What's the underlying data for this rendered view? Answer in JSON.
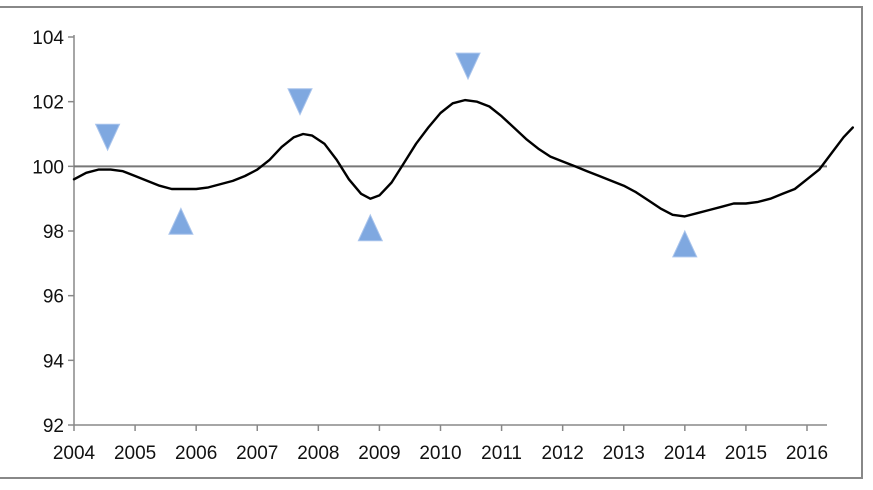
{
  "chart_data": {
    "type": "line",
    "x_tick_labels": [
      "2004",
      "2005",
      "2006",
      "2007",
      "2008",
      "2009",
      "2010",
      "2011",
      "2012",
      "2013",
      "2014",
      "2015",
      "2016"
    ],
    "y_ticks": [
      92,
      94,
      96,
      98,
      100,
      102,
      104
    ],
    "xlim": [
      2004,
      2016.75
    ],
    "ylim": [
      92,
      104
    ],
    "reference_line": 100,
    "grid": false,
    "series": [
      {
        "color": "#000000",
        "points": [
          [
            2004.0,
            99.6
          ],
          [
            2004.2,
            99.8
          ],
          [
            2004.4,
            99.9
          ],
          [
            2004.6,
            99.9
          ],
          [
            2004.8,
            99.85
          ],
          [
            2005.0,
            99.7
          ],
          [
            2005.2,
            99.55
          ],
          [
            2005.4,
            99.4
          ],
          [
            2005.6,
            99.3
          ],
          [
            2005.8,
            99.3
          ],
          [
            2006.0,
            99.3
          ],
          [
            2006.2,
            99.35
          ],
          [
            2006.4,
            99.45
          ],
          [
            2006.6,
            99.55
          ],
          [
            2006.8,
            99.7
          ],
          [
            2007.0,
            99.9
          ],
          [
            2007.2,
            100.2
          ],
          [
            2007.4,
            100.6
          ],
          [
            2007.6,
            100.9
          ],
          [
            2007.75,
            101.0
          ],
          [
            2007.9,
            100.95
          ],
          [
            2008.1,
            100.7
          ],
          [
            2008.3,
            100.2
          ],
          [
            2008.5,
            99.6
          ],
          [
            2008.7,
            99.15
          ],
          [
            2008.85,
            99.0
          ],
          [
            2009.0,
            99.1
          ],
          [
            2009.2,
            99.5
          ],
          [
            2009.4,
            100.1
          ],
          [
            2009.6,
            100.7
          ],
          [
            2009.8,
            101.2
          ],
          [
            2010.0,
            101.65
          ],
          [
            2010.2,
            101.95
          ],
          [
            2010.4,
            102.05
          ],
          [
            2010.6,
            102.0
          ],
          [
            2010.8,
            101.85
          ],
          [
            2011.0,
            101.55
          ],
          [
            2011.2,
            101.2
          ],
          [
            2011.4,
            100.85
          ],
          [
            2011.6,
            100.55
          ],
          [
            2011.8,
            100.3
          ],
          [
            2012.0,
            100.15
          ],
          [
            2012.2,
            100.0
          ],
          [
            2012.4,
            99.85
          ],
          [
            2012.6,
            99.7
          ],
          [
            2012.8,
            99.55
          ],
          [
            2013.0,
            99.4
          ],
          [
            2013.2,
            99.2
          ],
          [
            2013.4,
            98.95
          ],
          [
            2013.6,
            98.7
          ],
          [
            2013.8,
            98.5
          ],
          [
            2014.0,
            98.45
          ],
          [
            2014.2,
            98.55
          ],
          [
            2014.4,
            98.65
          ],
          [
            2014.6,
            98.75
          ],
          [
            2014.8,
            98.85
          ],
          [
            2015.0,
            98.85
          ],
          [
            2015.2,
            98.9
          ],
          [
            2015.4,
            99.0
          ],
          [
            2015.6,
            99.15
          ],
          [
            2015.8,
            99.3
          ],
          [
            2016.0,
            99.6
          ],
          [
            2016.2,
            99.9
          ],
          [
            2016.4,
            100.4
          ],
          [
            2016.6,
            100.9
          ],
          [
            2016.75,
            101.2
          ]
        ]
      }
    ],
    "markers": [
      {
        "direction": "down",
        "x": 2004.55,
        "y": 100.9
      },
      {
        "direction": "up",
        "x": 2005.75,
        "y": 98.3
      },
      {
        "direction": "down",
        "x": 2007.7,
        "y": 102.0
      },
      {
        "direction": "up",
        "x": 2008.85,
        "y": 98.1
      },
      {
        "direction": "down",
        "x": 2010.45,
        "y": 103.1
      },
      {
        "direction": "up",
        "x": 2014.0,
        "y": 97.6
      }
    ],
    "marker_color": "#7fa8e0",
    "line_color": "#000000",
    "reference_line_color": "#777777"
  }
}
